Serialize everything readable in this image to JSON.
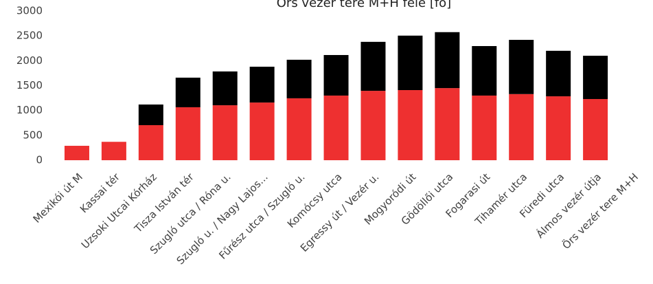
{
  "chart_data": {
    "type": "stacked_bar",
    "title": "Örs vezér tere M+H felé [fő]",
    "categories": [
      "Mexikói út M",
      "Kassai tér",
      "Uzsoki Utcai Kórház",
      "Tisza István tér",
      "Szugló utca / Róna u.",
      "Szugló u. / Nagy Lajos...",
      "Fűrész utca / Szugló u.",
      "Komócsy utca",
      "Egressy út / Vezér u.",
      "Mogyoródi út",
      "Gödöllői utca",
      "Fogarasi út",
      "Tihamér utca",
      "Füredi utca",
      "Álmos vezér útja",
      "Örs vezér tere M+H"
    ],
    "series": [
      {
        "color": "#ee3030",
        "values": [
          290,
          370,
          705,
          1065,
          1105,
          1160,
          1245,
          1300,
          1395,
          1410,
          1450,
          1300,
          1330,
          1285,
          1230,
          0
        ]
      },
      {
        "color": "#000000",
        "values": [
          0,
          0,
          415,
          595,
          680,
          720,
          775,
          815,
          985,
          1095,
          1125,
          995,
          1090,
          915,
          870,
          0
        ]
      }
    ],
    "ylim": [
      0,
      3000
    ],
    "yticks": [
      0,
      500,
      1000,
      1500,
      2000,
      2500,
      3000
    ]
  }
}
